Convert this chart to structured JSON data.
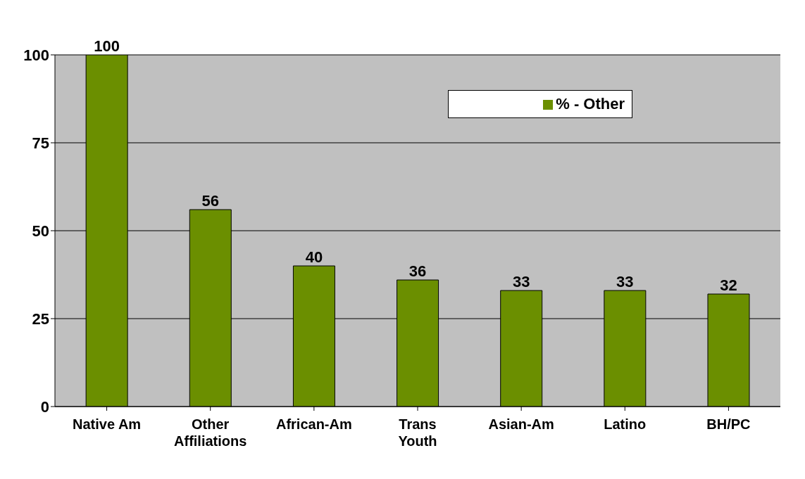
{
  "chart_data": {
    "type": "bar",
    "categories": [
      "Native Am",
      "Other Affiliations",
      "African-Am",
      "Trans Youth",
      "Asian-Am",
      "Latino",
      "BH/PC"
    ],
    "series": [
      {
        "name": "% - Other",
        "color": "#6b8f00",
        "values": [
          100,
          56,
          40,
          36,
          33,
          33,
          32
        ]
      }
    ],
    "ylim": [
      0,
      100
    ],
    "yticks": [
      0,
      25,
      50,
      75,
      100
    ],
    "grid": "y",
    "legend": "top right",
    "data_labels": true
  }
}
